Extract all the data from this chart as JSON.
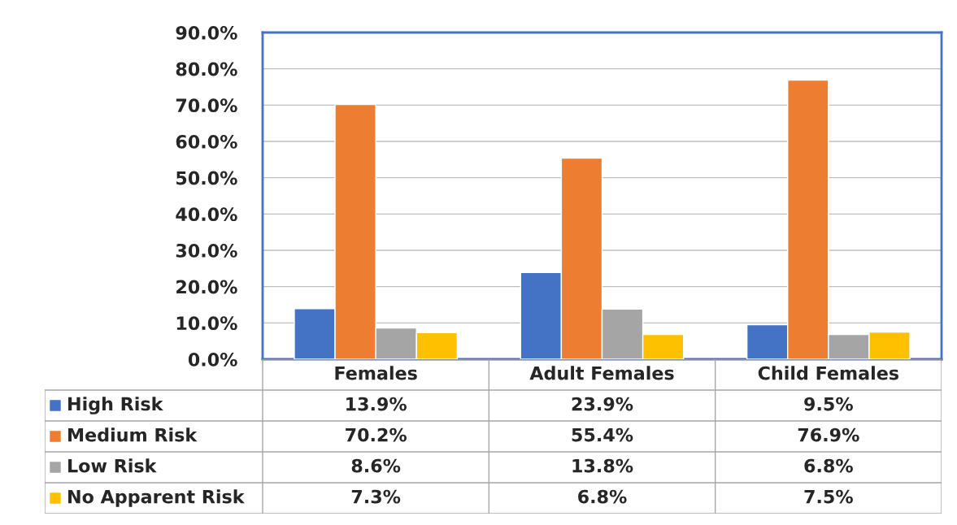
{
  "chart_data": {
    "type": "bar",
    "categories": [
      "Females",
      "Adult Females",
      "Child Females"
    ],
    "series": [
      {
        "name": "High Risk",
        "color": "#4472c4",
        "values": [
          13.9,
          23.9,
          9.5
        ],
        "value_labels": [
          "13.9%",
          "23.9%",
          "9.5%"
        ]
      },
      {
        "name": "Medium Risk",
        "color": "#ed7d31",
        "values": [
          70.2,
          55.4,
          76.9
        ],
        "value_labels": [
          "70.2%",
          "55.4%",
          "76.9%"
        ]
      },
      {
        "name": "Low Risk",
        "color": "#a5a5a5",
        "values": [
          8.6,
          13.8,
          6.8
        ],
        "value_labels": [
          "8.6%",
          "13.8%",
          "6.8%"
        ]
      },
      {
        "name": "No Apparent Risk",
        "color": "#ffc000",
        "values": [
          7.3,
          6.8,
          7.5
        ],
        "value_labels": [
          "7.3%",
          "6.8%",
          "7.5%"
        ]
      }
    ],
    "ylim": [
      0,
      90
    ],
    "yticks": [
      {
        "value": 0,
        "label": "0.0%"
      },
      {
        "value": 10,
        "label": "10.0%"
      },
      {
        "value": 20,
        "label": "20.0%"
      },
      {
        "value": 30,
        "label": "30.0%"
      },
      {
        "value": 40,
        "label": "40.0%"
      },
      {
        "value": 50,
        "label": "50.0%"
      },
      {
        "value": 60,
        "label": "60.0%"
      },
      {
        "value": 70,
        "label": "70.0%"
      },
      {
        "value": 80,
        "label": "80.0%"
      },
      {
        "value": 90,
        "label": "90.0%"
      }
    ],
    "grid": "y",
    "legend": "bottom"
  }
}
